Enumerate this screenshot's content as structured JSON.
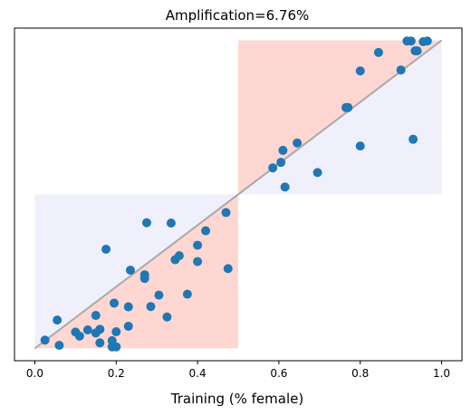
{
  "chart_data": {
    "type": "scatter",
    "title": "Amplification=6.76%",
    "xlabel": "Training (% female)",
    "ylabel": "",
    "xlim": [
      -0.05,
      1.05
    ],
    "ylim": [
      -0.04,
      1.04
    ],
    "xticks": [
      "0.0",
      "0.2",
      "0.4",
      "0.6",
      "0.8",
      "1.0"
    ],
    "yticks_visible": false,
    "grid": false,
    "colors": {
      "points": "#1f77b4",
      "diagonal": "#a9a9a9",
      "amplified_region": "#ffd7d2",
      "reference_region": "#eff0fb",
      "axes": "#000000"
    },
    "regions": [
      {
        "name": "lower-reference",
        "x": [
          0.0,
          0.5
        ],
        "y": [
          0.0,
          0.5
        ],
        "fill": "#eff0fb"
      },
      {
        "name": "upper-reference",
        "x": [
          0.5,
          1.0
        ],
        "y": [
          0.5,
          1.0
        ],
        "fill": "#eff0fb"
      },
      {
        "name": "lower-amplified",
        "x": [
          0.0,
          0.5
        ],
        "y": [
          0.0,
          0.5
        ],
        "fill": "#ffd7d2",
        "half": "lower"
      },
      {
        "name": "upper-amplified",
        "x": [
          0.5,
          1.0
        ],
        "y": [
          0.5,
          1.0
        ],
        "fill": "#ffd7d2",
        "half": "upper"
      }
    ],
    "diagonal": {
      "x": [
        0.0,
        1.0
      ],
      "y": [
        0.0,
        1.0
      ]
    },
    "points": [
      [
        0.025,
        0.027
      ],
      [
        0.055,
        0.092
      ],
      [
        0.06,
        0.01
      ],
      [
        0.1,
        0.053
      ],
      [
        0.11,
        0.04
      ],
      [
        0.13,
        0.06
      ],
      [
        0.15,
        0.107
      ],
      [
        0.15,
        0.05
      ],
      [
        0.16,
        0.062
      ],
      [
        0.16,
        0.018
      ],
      [
        0.175,
        0.322
      ],
      [
        0.19,
        0.005
      ],
      [
        0.19,
        0.025
      ],
      [
        0.195,
        0.147
      ],
      [
        0.2,
        0.054
      ],
      [
        0.2,
        0.005
      ],
      [
        0.23,
        0.072
      ],
      [
        0.23,
        0.135
      ],
      [
        0.235,
        0.254
      ],
      [
        0.27,
        0.227
      ],
      [
        0.27,
        0.239
      ],
      [
        0.275,
        0.408
      ],
      [
        0.285,
        0.136
      ],
      [
        0.305,
        0.173
      ],
      [
        0.325,
        0.102
      ],
      [
        0.335,
        0.407
      ],
      [
        0.345,
        0.288
      ],
      [
        0.355,
        0.301
      ],
      [
        0.375,
        0.176
      ],
      [
        0.4,
        0.282
      ],
      [
        0.4,
        0.335
      ],
      [
        0.42,
        0.382
      ],
      [
        0.47,
        0.441
      ],
      [
        0.475,
        0.259
      ],
      [
        0.585,
        0.586
      ],
      [
        0.605,
        0.604
      ],
      [
        0.61,
        0.643
      ],
      [
        0.615,
        0.524
      ],
      [
        0.645,
        0.667
      ],
      [
        0.695,
        0.571
      ],
      [
        0.765,
        0.782
      ],
      [
        0.77,
        0.782
      ],
      [
        0.8,
        0.901
      ],
      [
        0.8,
        0.657
      ],
      [
        0.845,
        0.961
      ],
      [
        0.9,
        0.904
      ],
      [
        0.915,
        0.998
      ],
      [
        0.925,
        0.998
      ],
      [
        0.93,
        0.679
      ],
      [
        0.935,
        0.966
      ],
      [
        0.94,
        0.966
      ],
      [
        0.955,
        0.996
      ],
      [
        0.965,
        0.998
      ]
    ]
  }
}
